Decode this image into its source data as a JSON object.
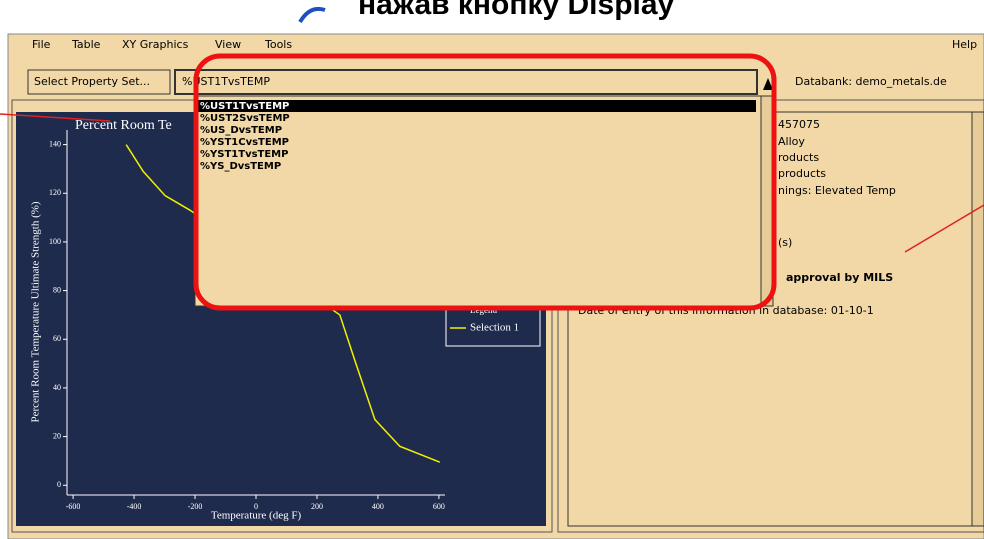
{
  "title": "нажав кнопку Display",
  "menu": [
    "File",
    "Table",
    "XY Graphics",
    "View",
    "Tools"
  ],
  "help": "Help",
  "toolbar": {
    "button": "Select Property Set...",
    "combo": "%UST1TvsTEMP",
    "databank": "Databank: demo_metals.de"
  },
  "dropdown": [
    "%UST1TvsTEMP",
    "%UST2SvsTEMP",
    "%US_DvsTEMP",
    "%YST1CvsTEMP",
    "%YST1TvsTEMP",
    "%YS_DvsTEMP"
  ],
  "plot": {
    "title": "Percent Room Te",
    "xlabel": "Temperature (deg F)",
    "ylabel": "Percent Room Temperature Ultimate Strength (%)",
    "xlim": [
      -620,
      620
    ],
    "ylim": [
      -4,
      146
    ],
    "xticks": [
      -600,
      -400,
      -200,
      0,
      200,
      400,
      600
    ],
    "yticks": [
      0,
      20,
      40,
      60,
      80,
      100,
      120,
      140
    ],
    "color": "#f0f000",
    "x": [
      -426,
      -370,
      -298,
      -216,
      275,
      325,
      390,
      472,
      603
    ],
    "y": [
      140,
      129,
      119,
      113,
      70,
      51,
      27,
      16,
      9.5
    ],
    "legend": {
      "title": "Legend",
      "items": [
        "Selection 1"
      ]
    }
  },
  "panel": {
    "lines": [
      "457075",
      "Alloy",
      "roducts",
      "products",
      "nings: Elevated Temp",
      "(s)"
    ],
    "approval": "approval by MILS",
    "date": "Date of entry of this information in database: 01-10-1"
  }
}
